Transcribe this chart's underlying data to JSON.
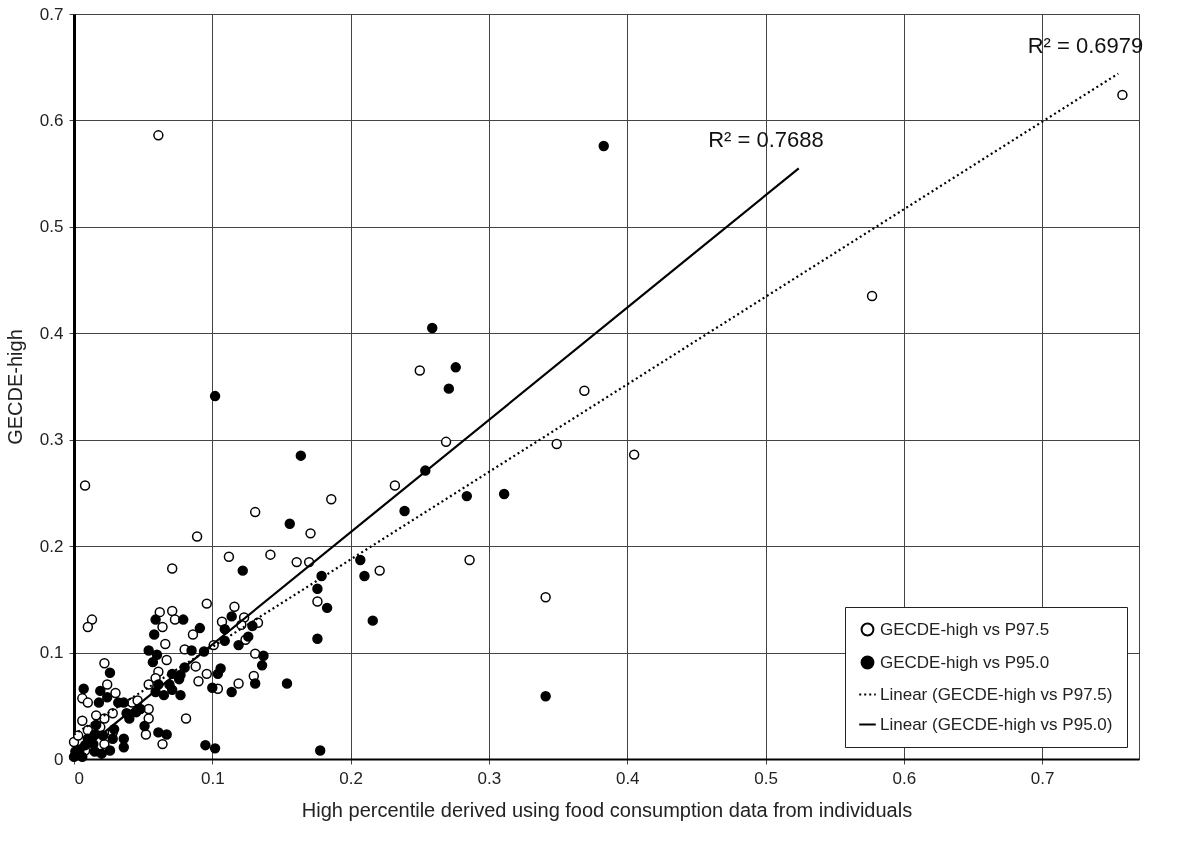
{
  "chart_data": {
    "type": "scatter",
    "xlabel": "High percentile derived using food consumption data from individuals",
    "ylabel": "GECDE-high",
    "xlim": [
      0,
      0.77
    ],
    "ylim": [
      0,
      0.7
    ],
    "xticks": [
      0,
      0.1,
      0.2,
      0.3,
      0.4,
      0.5,
      0.6,
      0.7
    ],
    "yticks": [
      0,
      0.1,
      0.2,
      0.3,
      0.4,
      0.5,
      0.6,
      0.7
    ],
    "grid": true,
    "legend": "bottom right",
    "annotations": [
      "R² = 0.7688",
      "R² = 0.6979"
    ],
    "series": [
      {
        "name": "GECDE-high vs P97.5",
        "marker": "circle",
        "color": "#000000",
        "x": [
          0.061,
          0.758,
          0.577,
          0.369,
          0.349,
          0.405,
          0.25,
          0.269,
          0.232,
          0.186,
          0.171,
          0.161,
          0.17,
          0.176,
          0.221,
          0.286,
          0.341,
          0.008,
          0.131,
          0.089,
          0.112,
          0.142,
          0.071,
          0.013,
          0.01,
          0.096,
          0.116,
          0.062,
          0.071,
          0.073,
          0.064,
          0.086,
          0.066,
          0.107,
          0.123,
          0.133,
          0.121,
          0.124,
          0.101,
          0.08,
          0.067,
          0.131,
          0.104,
          0.096,
          0.09,
          0.119,
          0.13,
          0.088,
          0.061,
          0.059,
          0.054,
          0.022,
          0.024,
          0.03,
          0.006,
          0.01,
          0.042,
          0.046,
          0.054,
          0.028,
          0.022,
          0.016,
          0.006,
          0.013,
          0.054,
          0.052,
          0.064,
          0.081,
          0.028,
          0.0,
          0.003,
          0.008,
          0.022,
          0.01,
          0.019
        ],
        "values": [
          0.586,
          0.624,
          0.435,
          0.346,
          0.296,
          0.286,
          0.365,
          0.298,
          0.257,
          0.244,
          0.212,
          0.185,
          0.185,
          0.148,
          0.177,
          0.187,
          0.152,
          0.257,
          0.232,
          0.209,
          0.19,
          0.192,
          0.179,
          0.131,
          0.124,
          0.146,
          0.143,
          0.138,
          0.139,
          0.131,
          0.124,
          0.117,
          0.108,
          0.129,
          0.133,
          0.128,
          0.126,
          0.112,
          0.107,
          0.103,
          0.093,
          0.099,
          0.066,
          0.08,
          0.073,
          0.071,
          0.078,
          0.087,
          0.082,
          0.076,
          0.07,
          0.09,
          0.07,
          0.062,
          0.057,
          0.053,
          0.053,
          0.055,
          0.047,
          0.043,
          0.038,
          0.041,
          0.036,
          0.028,
          0.038,
          0.023,
          0.014,
          0.038,
          0.025,
          0.016,
          0.022,
          0.008,
          0.014,
          0.027,
          0.03
        ]
      },
      {
        "name": "GECDE-high vs P95.0",
        "marker": "circle",
        "color": "#000000",
        "x": [
          0.102,
          0.164,
          0.259,
          0.276,
          0.271,
          0.254,
          0.383,
          0.311,
          0.284,
          0.239,
          0.179,
          0.176,
          0.183,
          0.176,
          0.207,
          0.21,
          0.216,
          0.341,
          0.178,
          0.156,
          0.122,
          0.079,
          0.059,
          0.091,
          0.058,
          0.114,
          0.129,
          0.109,
          0.126,
          0.119,
          0.109,
          0.094,
          0.085,
          0.054,
          0.06,
          0.057,
          0.137,
          0.136,
          0.106,
          0.104,
          0.1,
          0.131,
          0.114,
          0.154,
          0.08,
          0.077,
          0.076,
          0.071,
          0.061,
          0.069,
          0.071,
          0.065,
          0.077,
          0.059,
          0.026,
          0.007,
          0.019,
          0.024,
          0.018,
          0.032,
          0.036,
          0.048,
          0.045,
          0.038,
          0.04,
          0.016,
          0.051,
          0.061,
          0.067,
          0.095,
          0.102,
          0.029,
          0.036,
          0.028,
          0.021,
          0.036,
          0.026,
          0.02,
          0.014,
          0.008,
          0.01,
          0.015,
          0.001,
          0.006,
          0.0,
          0.015,
          0.004
        ],
        "values": [
          0.341,
          0.285,
          0.405,
          0.368,
          0.348,
          0.271,
          0.576,
          0.249,
          0.247,
          0.233,
          0.172,
          0.16,
          0.142,
          0.113,
          0.187,
          0.172,
          0.13,
          0.059,
          0.008,
          0.221,
          0.177,
          0.131,
          0.131,
          0.123,
          0.117,
          0.134,
          0.125,
          0.122,
          0.115,
          0.107,
          0.111,
          0.101,
          0.102,
          0.102,
          0.098,
          0.091,
          0.097,
          0.088,
          0.085,
          0.08,
          0.067,
          0.071,
          0.063,
          0.071,
          0.086,
          0.079,
          0.075,
          0.08,
          0.07,
          0.07,
          0.065,
          0.06,
          0.06,
          0.063,
          0.081,
          0.066,
          0.064,
          0.058,
          0.053,
          0.053,
          0.053,
          0.047,
          0.044,
          0.043,
          0.038,
          0.032,
          0.031,
          0.025,
          0.023,
          0.013,
          0.01,
          0.028,
          0.019,
          0.019,
          0.022,
          0.011,
          0.008,
          0.005,
          0.014,
          0.013,
          0.019,
          0.023,
          0.007,
          0.002,
          0.002,
          0.007,
          0.009
        ]
      },
      {
        "name": "Linear (GECDE-high vs P97.5)",
        "type": "line",
        "line_style": "dotted",
        "color": "#000000",
        "x": [
          0.0,
          0.755
        ],
        "values": [
          0.023,
          0.644
        ]
      },
      {
        "name": "Linear (GECDE-high vs P95.0)",
        "type": "line",
        "line_style": "solid",
        "color": "#000000",
        "x": [
          0.0,
          0.524
        ],
        "values": [
          0.002,
          0.555
        ]
      }
    ]
  }
}
